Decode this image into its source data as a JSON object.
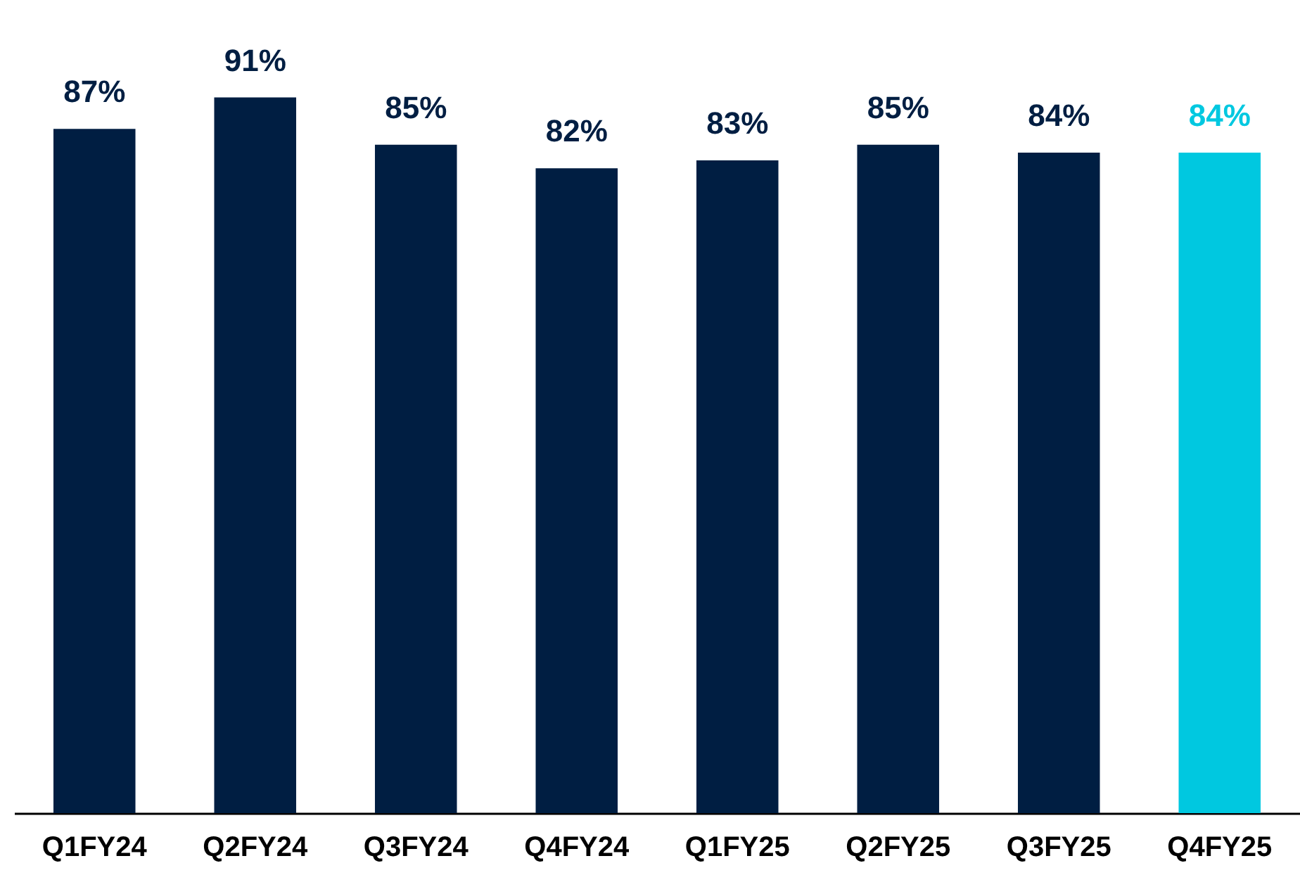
{
  "chart_data": {
    "type": "bar",
    "categories": [
      "Q1FY24",
      "Q2FY24",
      "Q3FY24",
      "Q4FY24",
      "Q1FY25",
      "Q2FY25",
      "Q3FY25",
      "Q4FY25"
    ],
    "values": [
      87,
      91,
      85,
      82,
      83,
      85,
      84,
      84
    ],
    "colors": [
      "#001e42",
      "#001e42",
      "#001e42",
      "#001e42",
      "#001e42",
      "#001e42",
      "#001e42",
      "#00c8e0"
    ],
    "value_labels": [
      "87%",
      "91%",
      "85%",
      "82%",
      "83%",
      "85%",
      "84%",
      "84%"
    ],
    "grid": false,
    "legend": false
  }
}
